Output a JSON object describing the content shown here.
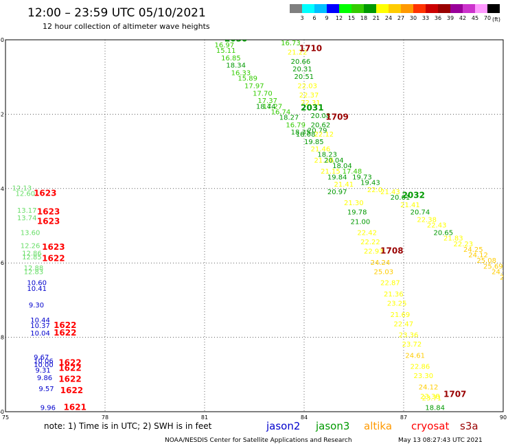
{
  "title": "12:00 – 23:59 UTC 05/10/2021",
  "subtitle": "12 hour collection of altimeter wave heights",
  "colorbar": {
    "ticks": [
      "3",
      "6",
      "9",
      "12",
      "15",
      "18",
      "21",
      "24",
      "27",
      "30",
      "33",
      "36",
      "39",
      "42",
      "45",
      "70"
    ],
    "unit": "(ft)",
    "colors": [
      "#7f7f7f",
      "#00ffff",
      "#00bfff",
      "#0000ff",
      "#00ff00",
      "#33cc00",
      "#009900",
      "#ffff00",
      "#ffcc00",
      "#ff9900",
      "#ff3300",
      "#cc0000",
      "#990000",
      "#990099",
      "#cc33cc",
      "#ff99ff",
      "#000000"
    ]
  },
  "legend": {
    "note": "note:  1) Time is in UTC;  2) SWH is in feet",
    "satellites": [
      {
        "name": "jason2",
        "color": "#0000cc"
      },
      {
        "name": "jason3",
        "color": "#009900"
      },
      {
        "name": "altika",
        "color": "#ff9900"
      },
      {
        "name": "cryosat",
        "color": "#ff0000"
      },
      {
        "name": "s3a",
        "color": "#990000"
      }
    ]
  },
  "footer": {
    "credit": "NOAA/NESDIS Center for Satellite Applications and Research",
    "timestamp": "May 13 08:27:43 UTC 2021"
  },
  "chart_data": {
    "type": "scatter",
    "xlim": [
      75,
      90
    ],
    "ylim": [
      -60,
      -50
    ],
    "x_ticks": [
      75,
      78,
      81,
      84,
      87,
      90
    ],
    "y_ticks": [
      -50,
      -52,
      -54,
      -56,
      -58,
      -60
    ],
    "x_tick_labels": [
      "75",
      "78",
      "81",
      "84",
      "87",
      "90"
    ],
    "y_tick_labels": [
      "-50",
      "-52",
      "-54",
      "-56",
      "-58",
      "-60"
    ],
    "grid": true,
    "wave_heights": [
      {
        "lon": 81.2,
        "lat": -50.0,
        "v": "17.01",
        "c": "#33cc00"
      },
      {
        "lon": 81.3,
        "lat": -50.2,
        "v": "16.97",
        "c": "#33cc00"
      },
      {
        "lon": 81.35,
        "lat": -50.35,
        "v": "15.11",
        "c": "#33cc00"
      },
      {
        "lon": 81.5,
        "lat": -50.55,
        "v": "16.85",
        "c": "#33cc00"
      },
      {
        "lon": 81.65,
        "lat": -50.75,
        "v": "18.34",
        "c": "#009900"
      },
      {
        "lon": 81.8,
        "lat": -50.95,
        "v": "16.33",
        "c": "#33cc00"
      },
      {
        "lon": 82.0,
        "lat": -51.1,
        "v": "15.89",
        "c": "#33cc00"
      },
      {
        "lon": 82.2,
        "lat": -51.3,
        "v": "17.97",
        "c": "#33cc00"
      },
      {
        "lon": 82.45,
        "lat": -51.5,
        "v": "17.70",
        "c": "#33cc00"
      },
      {
        "lon": 82.6,
        "lat": -51.7,
        "v": "17.37",
        "c": "#33cc00"
      },
      {
        "lon": 82.75,
        "lat": -51.85,
        "v": "17.27",
        "c": "#33cc00"
      },
      {
        "lon": 82.55,
        "lat": -51.85,
        "v": "18.44",
        "c": "#009900"
      },
      {
        "lon": 83.0,
        "lat": -52.0,
        "v": "16.74",
        "c": "#33cc00"
      },
      {
        "lon": 83.25,
        "lat": -52.15,
        "v": "18.27",
        "c": "#009900"
      },
      {
        "lon": 83.45,
        "lat": -52.35,
        "v": "16.79",
        "c": "#33cc00"
      },
      {
        "lon": 83.6,
        "lat": -52.55,
        "v": "18.35",
        "c": "#009900"
      },
      {
        "lon": 83.75,
        "lat": -52.6,
        "v": "18.08",
        "c": "#009900"
      },
      {
        "lon": 83.3,
        "lat": -50.15,
        "v": "16.73",
        "c": "#33cc00"
      },
      {
        "lon": 83.5,
        "lat": -50.4,
        "v": "21.22",
        "c": "#ffff00"
      },
      {
        "lon": 83.6,
        "lat": -50.65,
        "v": "20.66",
        "c": "#009900"
      },
      {
        "lon": 83.65,
        "lat": -50.85,
        "v": "20.31",
        "c": "#009900"
      },
      {
        "lon": 83.7,
        "lat": -51.05,
        "v": "20.51",
        "c": "#009900"
      },
      {
        "lon": 83.8,
        "lat": -51.3,
        "v": "22.03",
        "c": "#ffff00"
      },
      {
        "lon": 83.85,
        "lat": -51.55,
        "v": "22.37",
        "c": "#ffff00"
      },
      {
        "lon": 83.9,
        "lat": -51.75,
        "v": "22.31",
        "c": "#ffff00"
      },
      {
        "lon": 84.2,
        "lat": -52.1,
        "v": "20.08",
        "c": "#009900"
      },
      {
        "lon": 84.2,
        "lat": -52.35,
        "v": "20.62",
        "c": "#009900"
      },
      {
        "lon": 84.1,
        "lat": -52.5,
        "v": "20.79",
        "c": "#009900"
      },
      {
        "lon": 84.3,
        "lat": -52.6,
        "v": "22.12",
        "c": "#ffff00"
      },
      {
        "lon": 84.0,
        "lat": -52.8,
        "v": "19.85",
        "c": "#009900"
      },
      {
        "lon": 84.2,
        "lat": -53.0,
        "v": "21.46",
        "c": "#ffff00"
      },
      {
        "lon": 84.4,
        "lat": -53.15,
        "v": "18.23",
        "c": "#009900"
      },
      {
        "lon": 84.3,
        "lat": -53.3,
        "v": "21.16",
        "c": "#ffff00"
      },
      {
        "lon": 84.6,
        "lat": -53.3,
        "v": "20.04",
        "c": "#009900"
      },
      {
        "lon": 84.85,
        "lat": -53.45,
        "v": "18.04",
        "c": "#009900"
      },
      {
        "lon": 84.5,
        "lat": -53.6,
        "v": "21.15",
        "c": "#ffff00"
      },
      {
        "lon": 85.15,
        "lat": -53.6,
        "v": "17.48",
        "c": "#33cc00"
      },
      {
        "lon": 84.7,
        "lat": -53.75,
        "v": "19.84",
        "c": "#009900"
      },
      {
        "lon": 85.45,
        "lat": -53.75,
        "v": "19.73",
        "c": "#009900"
      },
      {
        "lon": 85.7,
        "lat": -53.9,
        "v": "19.43",
        "c": "#009900"
      },
      {
        "lon": 84.9,
        "lat": -53.95,
        "v": "21.41",
        "c": "#ffff00"
      },
      {
        "lon": 85.9,
        "lat": -54.1,
        "v": "22.0",
        "c": "#ffff00"
      },
      {
        "lon": 84.7,
        "lat": -54.15,
        "v": "20.97",
        "c": "#009900"
      },
      {
        "lon": 86.3,
        "lat": -54.15,
        "v": "21.43",
        "c": "#ffff00"
      },
      {
        "lon": 86.6,
        "lat": -54.3,
        "v": "20.61",
        "c": "#009900"
      },
      {
        "lon": 85.2,
        "lat": -54.45,
        "v": "21.30",
        "c": "#ffff00"
      },
      {
        "lon": 86.9,
        "lat": -54.5,
        "v": "21.41",
        "c": "#ffff00"
      },
      {
        "lon": 85.3,
        "lat": -54.7,
        "v": "19.78",
        "c": "#009900"
      },
      {
        "lon": 87.2,
        "lat": -54.7,
        "v": "20.74",
        "c": "#009900"
      },
      {
        "lon": 85.4,
        "lat": -54.95,
        "v": "21.00",
        "c": "#009900"
      },
      {
        "lon": 87.4,
        "lat": -54.9,
        "v": "22.38",
        "c": "#ffff00"
      },
      {
        "lon": 87.7,
        "lat": -55.05,
        "v": "22.43",
        "c": "#ffff00"
      },
      {
        "lon": 85.6,
        "lat": -55.25,
        "v": "22.42",
        "c": "#ffff00"
      },
      {
        "lon": 87.9,
        "lat": -55.25,
        "v": "20.65",
        "c": "#009900"
      },
      {
        "lon": 88.2,
        "lat": -55.4,
        "v": "21.83",
        "c": "#ffff00"
      },
      {
        "lon": 85.7,
        "lat": -55.5,
        "v": "22.22",
        "c": "#ffff00"
      },
      {
        "lon": 88.5,
        "lat": -55.55,
        "v": "22.23",
        "c": "#ffff00"
      },
      {
        "lon": 85.8,
        "lat": -55.75,
        "v": "22.93",
        "c": "#ffff00"
      },
      {
        "lon": 88.8,
        "lat": -55.7,
        "v": "24.25",
        "c": "#ffcc00"
      },
      {
        "lon": 88.95,
        "lat": -55.85,
        "v": "24.12",
        "c": "#ffcc00"
      },
      {
        "lon": 89.2,
        "lat": -56.0,
        "v": "25.08",
        "c": "#ffcc00"
      },
      {
        "lon": 86.0,
        "lat": -56.05,
        "v": "24.24",
        "c": "#ffcc00"
      },
      {
        "lon": 89.4,
        "lat": -56.15,
        "v": "25.69",
        "c": "#ffcc00"
      },
      {
        "lon": 89.65,
        "lat": -56.3,
        "v": "24.91",
        "c": "#ffcc00"
      },
      {
        "lon": 89.9,
        "lat": -56.45,
        "v": "24.5",
        "c": "#ffcc00"
      },
      {
        "lon": 86.1,
        "lat": -56.3,
        "v": "25.03",
        "c": "#ffcc00"
      },
      {
        "lon": 86.3,
        "lat": -56.6,
        "v": "22.87",
        "c": "#ffff00"
      },
      {
        "lon": 86.4,
        "lat": -56.9,
        "v": "21.36",
        "c": "#ffff00"
      },
      {
        "lon": 86.5,
        "lat": -57.15,
        "v": "23.25",
        "c": "#ffff00"
      },
      {
        "lon": 86.6,
        "lat": -57.45,
        "v": "21.69",
        "c": "#ffff00"
      },
      {
        "lon": 86.7,
        "lat": -57.7,
        "v": "22.47",
        "c": "#ffff00"
      },
      {
        "lon": 86.85,
        "lat": -58.0,
        "v": "23.36",
        "c": "#ffff00"
      },
      {
        "lon": 86.95,
        "lat": -58.25,
        "v": "23.72",
        "c": "#ffff00"
      },
      {
        "lon": 87.05,
        "lat": -58.55,
        "v": "24.61",
        "c": "#ffcc00"
      },
      {
        "lon": 87.2,
        "lat": -58.85,
        "v": "22.86",
        "c": "#ffff00"
      },
      {
        "lon": 87.3,
        "lat": -59.1,
        "v": "23.30",
        "c": "#ffff00"
      },
      {
        "lon": 87.45,
        "lat": -59.4,
        "v": "24.12",
        "c": "#ffcc00"
      },
      {
        "lon": 87.5,
        "lat": -59.65,
        "v": "23.38",
        "c": "#ffff00"
      },
      {
        "lon": 87.55,
        "lat": -59.7,
        "v": "23.71",
        "c": "#ffff00"
      },
      {
        "lon": 87.65,
        "lat": -59.95,
        "v": "18.84",
        "c": "#009900"
      },
      {
        "lon": 87.8,
        "lat": -60.25,
        "v": "23.20",
        "c": "#ffff00"
      },
      {
        "lon": 87.95,
        "lat": -60.55,
        "v": "21.47",
        "c": "#ffff00"
      },
      {
        "lon": 88.1,
        "lat": -60.85,
        "v": "21.28",
        "c": "#ffff00"
      },
      {
        "lon": 88.25,
        "lat": -61.1,
        "v": "21.08",
        "c": "#ffff00"
      },
      {
        "lon": 75.2,
        "lat": -54.05,
        "v": "12.13",
        "c": "#66dd66"
      },
      {
        "lon": 75.3,
        "lat": -54.2,
        "v": "12.60",
        "c": "#66dd66"
      },
      {
        "lon": 75.35,
        "lat": -54.65,
        "v": "13.17",
        "c": "#66dd66"
      },
      {
        "lon": 75.35,
        "lat": -54.85,
        "v": "13.74",
        "c": "#66dd66"
      },
      {
        "lon": 75.45,
        "lat": -55.25,
        "v": "13.60",
        "c": "#66dd66"
      },
      {
        "lon": 75.45,
        "lat": -55.6,
        "v": "12.26",
        "c": "#66dd66"
      },
      {
        "lon": 75.5,
        "lat": -55.8,
        "v": "12.86",
        "c": "#66dd66"
      },
      {
        "lon": 75.5,
        "lat": -55.9,
        "v": "12.85",
        "c": "#66dd66"
      },
      {
        "lon": 75.55,
        "lat": -56.2,
        "v": "12.88",
        "c": "#66dd66"
      },
      {
        "lon": 75.55,
        "lat": -56.3,
        "v": "12.83",
        "c": "#66dd66"
      },
      {
        "lon": 75.65,
        "lat": -56.6,
        "v": "10.60",
        "c": "#0000cc"
      },
      {
        "lon": 75.65,
        "lat": -56.75,
        "v": "10.41",
        "c": "#0000cc"
      },
      {
        "lon": 75.7,
        "lat": -57.2,
        "v": "9.30",
        "c": "#0000cc"
      },
      {
        "lon": 75.75,
        "lat": -57.6,
        "v": "10.44",
        "c": "#0000cc"
      },
      {
        "lon": 75.75,
        "lat": -57.75,
        "v": "10.37",
        "c": "#0000cc"
      },
      {
        "lon": 75.75,
        "lat": -57.95,
        "v": "10.04",
        "c": "#0000cc"
      },
      {
        "lon": 75.85,
        "lat": -58.6,
        "v": "9.67",
        "c": "#0000cc"
      },
      {
        "lon": 75.85,
        "lat": -58.7,
        "v": "10.06",
        "c": "#0000cc"
      },
      {
        "lon": 75.85,
        "lat": -58.8,
        "v": "10.00",
        "c": "#0000cc"
      },
      {
        "lon": 75.9,
        "lat": -58.95,
        "v": "9.31",
        "c": "#0000cc"
      },
      {
        "lon": 75.95,
        "lat": -59.15,
        "v": "9.86",
        "c": "#0000cc"
      },
      {
        "lon": 76.0,
        "lat": -59.45,
        "v": "9.57",
        "c": "#0000cc"
      },
      {
        "lon": 76.05,
        "lat": -59.95,
        "v": "9.96",
        "c": "#0000cc"
      },
      {
        "lon": 76.0,
        "lat": -60.45,
        "v": "10.75",
        "c": "#0000cc"
      },
      {
        "lon": 76.1,
        "lat": -60.95,
        "v": "10.15",
        "c": "#0000cc"
      }
    ],
    "pass_times": [
      {
        "lon": 81.6,
        "lat": -50.05,
        "t": "2030",
        "c": "#009900"
      },
      {
        "lon": 83.85,
        "lat": -50.3,
        "t": "1710",
        "c": "#990000"
      },
      {
        "lon": 83.9,
        "lat": -51.9,
        "t": "2031",
        "c": "#009900"
      },
      {
        "lon": 84.65,
        "lat": -52.15,
        "t": "1709",
        "c": "#990000"
      },
      {
        "lon": 86.95,
        "lat": -54.25,
        "t": "2032",
        "c": "#009900"
      },
      {
        "lon": 86.3,
        "lat": -55.75,
        "t": "1708",
        "c": "#990000"
      },
      {
        "lon": 88.2,
        "lat": -59.6,
        "t": "1707",
        "c": "#990000"
      },
      {
        "lon": 75.85,
        "lat": -54.2,
        "t": "1623",
        "c": "#ff0000"
      },
      {
        "lon": 75.95,
        "lat": -54.7,
        "t": "1623",
        "c": "#ff0000"
      },
      {
        "lon": 75.95,
        "lat": -54.95,
        "t": "1623",
        "c": "#ff0000"
      },
      {
        "lon": 76.1,
        "lat": -55.65,
        "t": "1623",
        "c": "#ff0000"
      },
      {
        "lon": 76.1,
        "lat": -55.95,
        "t": "1622",
        "c": "#ff0000"
      },
      {
        "lon": 76.45,
        "lat": -57.75,
        "t": "1622",
        "c": "#ff0000"
      },
      {
        "lon": 76.45,
        "lat": -57.95,
        "t": "1622",
        "c": "#ff0000"
      },
      {
        "lon": 76.6,
        "lat": -58.75,
        "t": "1622",
        "c": "#ff0000"
      },
      {
        "lon": 76.6,
        "lat": -58.9,
        "t": "1622",
        "c": "#ff0000"
      },
      {
        "lon": 76.6,
        "lat": -59.2,
        "t": "1622",
        "c": "#ff0000"
      },
      {
        "lon": 76.65,
        "lat": -59.5,
        "t": "1622",
        "c": "#ff0000"
      },
      {
        "lon": 76.75,
        "lat": -59.95,
        "t": "1621",
        "c": "#ff0000"
      },
      {
        "lon": 76.8,
        "lat": -60.45,
        "t": "1621",
        "c": "#ff0000"
      },
      {
        "lon": 76.85,
        "lat": -60.95,
        "t": "1621",
        "c": "#ff0000"
      }
    ]
  }
}
